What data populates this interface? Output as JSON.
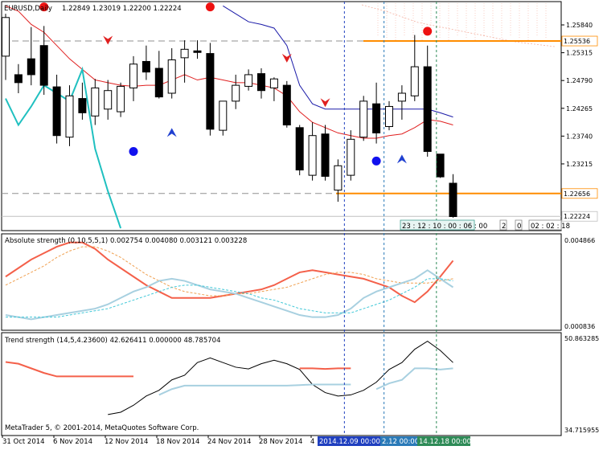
{
  "chart_data": [
    {
      "type": "candlestick",
      "symbol_label": "EURUSD,Daily",
      "ohlc_label": "1.22849 1.23019 1.22200 1.22224",
      "yaxis_ticks": [
        "1.25840",
        "1.25315",
        "1.24790",
        "1.24265",
        "1.23740",
        "1.23215"
      ],
      "ylim": [
        1.22,
        1.2625
      ],
      "price_tags": [
        {
          "value": 1.25536,
          "label": "1.25536",
          "color": "#ff8c00"
        },
        {
          "value": 1.22656,
          "label": "1.22656",
          "color": "#ff8c00"
        },
        {
          "value": 1.22224,
          "label": "1.22224",
          "color": "#c0c0c0"
        }
      ],
      "time_box_labels": [
        "23 : 12 : 10 : 00 : 06 : 00"
      ],
      "time_box2_labels": [
        "2",
        "0",
        "02 : 02 : 18"
      ],
      "candles": [
        {
          "o": 1.2525,
          "h": 1.2605,
          "l": 1.248,
          "c": 1.2598
        },
        {
          "o": 1.249,
          "h": 1.251,
          "l": 1.2455,
          "c": 1.2475
        },
        {
          "o": 1.252,
          "h": 1.258,
          "l": 1.247,
          "c": 1.249
        },
        {
          "o": 1.2545,
          "h": 1.2582,
          "l": 1.2452,
          "c": 1.247
        },
        {
          "o": 1.2467,
          "h": 1.249,
          "l": 1.236,
          "c": 1.2375
        },
        {
          "o": 1.2372,
          "h": 1.247,
          "l": 1.2355,
          "c": 1.245
        },
        {
          "o": 1.2445,
          "h": 1.2475,
          "l": 1.2405,
          "c": 1.2418
        },
        {
          "o": 1.2412,
          "h": 1.2482,
          "l": 1.2395,
          "c": 1.2465
        },
        {
          "o": 1.2425,
          "h": 1.248,
          "l": 1.2405,
          "c": 1.246
        },
        {
          "o": 1.242,
          "h": 1.2475,
          "l": 1.241,
          "c": 1.2468
        },
        {
          "o": 1.2465,
          "h": 1.2525,
          "l": 1.244,
          "c": 1.251
        },
        {
          "o": 1.2515,
          "h": 1.2545,
          "l": 1.248,
          "c": 1.2495
        },
        {
          "o": 1.2502,
          "h": 1.2535,
          "l": 1.2445,
          "c": 1.2448
        },
        {
          "o": 1.2455,
          "h": 1.254,
          "l": 1.2445,
          "c": 1.2518
        },
        {
          "o": 1.2522,
          "h": 1.2555,
          "l": 1.2475,
          "c": 1.2538
        },
        {
          "o": 1.2535,
          "h": 1.2555,
          "l": 1.252,
          "c": 1.2532
        },
        {
          "o": 1.253,
          "h": 1.255,
          "l": 1.2375,
          "c": 1.2387
        },
        {
          "o": 1.2385,
          "h": 1.244,
          "l": 1.2375,
          "c": 1.244
        },
        {
          "o": 1.244,
          "h": 1.249,
          "l": 1.2425,
          "c": 1.247
        },
        {
          "o": 1.2468,
          "h": 1.25,
          "l": 1.246,
          "c": 1.249
        },
        {
          "o": 1.2492,
          "h": 1.2502,
          "l": 1.2445,
          "c": 1.246
        },
        {
          "o": 1.2465,
          "h": 1.2485,
          "l": 1.244,
          "c": 1.2482
        },
        {
          "o": 1.247,
          "h": 1.2478,
          "l": 1.239,
          "c": 1.2395
        },
        {
          "o": 1.239,
          "h": 1.2395,
          "l": 1.23,
          "c": 1.231
        },
        {
          "o": 1.23,
          "h": 1.24,
          "l": 1.229,
          "c": 1.2375
        },
        {
          "o": 1.2378,
          "h": 1.2395,
          "l": 1.229,
          "c": 1.2298
        },
        {
          "o": 1.2272,
          "h": 1.233,
          "l": 1.225,
          "c": 1.2318
        },
        {
          "o": 1.23,
          "h": 1.2385,
          "l": 1.229,
          "c": 1.2368
        },
        {
          "o": 1.2372,
          "h": 1.245,
          "l": 1.2365,
          "c": 1.244
        },
        {
          "o": 1.2435,
          "h": 1.2475,
          "l": 1.236,
          "c": 1.238
        },
        {
          "o": 1.2392,
          "h": 1.244,
          "l": 1.2385,
          "c": 1.243
        },
        {
          "o": 1.244,
          "h": 1.247,
          "l": 1.2405,
          "c": 1.2455
        },
        {
          "o": 1.245,
          "h": 1.2565,
          "l": 1.244,
          "c": 1.2505
        },
        {
          "o": 1.2505,
          "h": 1.2545,
          "l": 1.2335,
          "c": 1.2345
        },
        {
          "o": 1.234,
          "h": 1.234,
          "l": 1.2295,
          "c": 1.2297
        },
        {
          "o": 1.2285,
          "h": 1.2302,
          "l": 1.222,
          "c": 1.2222
        }
      ],
      "red_trail": [
        1.262,
        1.261,
        1.2585,
        1.257,
        1.2545,
        1.252,
        1.25,
        1.248,
        1.2475,
        1.247,
        1.2468,
        1.247,
        1.247,
        1.248,
        1.249,
        1.248,
        1.2485,
        1.248,
        1.2475,
        1.2475,
        1.247,
        1.2465,
        1.245,
        1.242,
        1.24,
        1.239,
        1.238,
        1.2375,
        1.237,
        1.237,
        1.2375,
        1.2378,
        1.239,
        1.2405,
        1.2402,
        1.2395
      ],
      "blue_trail": [
        null,
        null,
        null,
        null,
        null,
        null,
        null,
        null,
        null,
        null,
        null,
        null,
        null,
        null,
        null,
        null,
        null,
        1.262,
        1.2605,
        1.259,
        1.2585,
        1.2578,
        1.2545,
        1.247,
        1.2435,
        1.2425,
        1.2425,
        1.2425,
        1.2425,
        1.2425,
        1.2425,
        1.2425,
        1.2425,
        1.2425,
        1.2418,
        1.241
      ],
      "cyan_trail": [
        1.2445,
        1.2395,
        1.243,
        1.247,
        1.2455,
        1.244,
        1.25,
        1.235,
        1.227,
        1.22
      ],
      "fractals_up": [
        {
          "i": 3,
          "y": 1.2618
        },
        {
          "i": 16,
          "y": 1.2618
        },
        {
          "i": 33,
          "y": 1.2572
        }
      ],
      "fractals_down": [
        {
          "i": 10,
          "y": 1.2345
        },
        {
          "i": 29,
          "y": 1.2327
        }
      ],
      "arrows_down": [
        {
          "i": 8,
          "y": 1.2556
        },
        {
          "i": 22,
          "y": 1.2522
        },
        {
          "i": 25,
          "y": 1.2438
        }
      ],
      "arrows_up": [
        {
          "i": 13,
          "y": 1.238
        },
        {
          "i": 31,
          "y": 1.233
        }
      ]
    },
    {
      "type": "line",
      "title": "Absolute strength (0,10,5,5,1) 0.002754 0.004080 0.003121 0.003228",
      "yaxis_ticks": [
        "0.004866",
        "0.000836"
      ],
      "ylim": [
        0.000836,
        0.004866
      ],
      "series": [
        {
          "color": "#f4604a",
          "values": [
            0.0032,
            0.0036,
            0.004,
            0.0043,
            0.0046,
            0.0048,
            0.0048,
            0.0045,
            0.004,
            0.0036,
            0.0032,
            0.0028,
            0.0025,
            0.0022,
            0.0022,
            0.0022,
            0.0022,
            0.0023,
            0.0024,
            0.0025,
            0.0026,
            0.0028,
            0.0031,
            0.0034,
            0.0035,
            0.0034,
            0.0033,
            0.0032,
            0.0031,
            0.0029,
            0.0027,
            0.0023,
            0.002,
            0.0025,
            0.0032,
            0.00395
          ]
        },
        {
          "color": "#f0a050",
          "dashed": true,
          "values": [
            0.0028,
            0.0031,
            0.0034,
            0.0037,
            0.0041,
            0.0044,
            0.0046,
            0.0046,
            0.0044,
            0.0041,
            0.0037,
            0.0033,
            0.003,
            0.0027,
            0.0025,
            0.0024,
            0.0023,
            0.0023,
            0.0024,
            0.0024,
            0.0025,
            0.0026,
            0.0027,
            0.0029,
            0.0031,
            0.0033,
            0.0034,
            0.0034,
            0.0033,
            0.0031,
            0.003,
            0.0029,
            0.0029,
            0.0029,
            0.003,
            0.0031
          ]
        },
        {
          "color": "#a8d0e0",
          "values": [
            0.0014,
            0.0013,
            0.0012,
            0.0013,
            0.0014,
            0.0015,
            0.0016,
            0.0017,
            0.0019,
            0.0022,
            0.0025,
            0.0027,
            0.003,
            0.0031,
            0.003,
            0.0028,
            0.0026,
            0.0025,
            0.0024,
            0.0022,
            0.002,
            0.0018,
            0.0016,
            0.0014,
            0.0013,
            0.0013,
            0.0014,
            0.0017,
            0.0022,
            0.0025,
            0.0027,
            0.0029,
            0.0031,
            0.0035,
            0.0031,
            0.0027
          ]
        },
        {
          "color": "#40c8d8",
          "dashed": true,
          "values": [
            0.0013,
            0.0013,
            0.0013,
            0.0013,
            0.0013,
            0.0014,
            0.0015,
            0.0016,
            0.0017,
            0.0019,
            0.0021,
            0.0023,
            0.0025,
            0.0027,
            0.0028,
            0.0028,
            0.0027,
            0.0026,
            0.0025,
            0.0024,
            0.0022,
            0.0021,
            0.0019,
            0.0017,
            0.0016,
            0.0015,
            0.0015,
            0.0015,
            0.0017,
            0.0019,
            0.0021,
            0.0024,
            0.0027,
            0.0031,
            0.0031,
            0.003
          ]
        }
      ]
    },
    {
      "type": "line",
      "title": "Trend strength (14,5,4.23600) 42.626411 0.000000 48.785704",
      "yaxis_ticks": [
        "50.863285",
        "34.715955"
      ],
      "ylim": [
        34.715955,
        50.863285
      ],
      "series": [
        {
          "color": "#000000",
          "values": [
            null,
            null,
            null,
            null,
            null,
            null,
            null,
            null,
            37.8,
            38.2,
            39.4,
            41.0,
            42.0,
            43.8,
            44.6,
            46.8,
            47.6,
            46.8,
            46.0,
            45.7,
            46.6,
            47.2,
            46.6,
            45.6,
            43.0,
            41.6,
            41.0,
            41.2,
            42.0,
            43.4,
            45.6,
            46.8,
            49.1,
            50.5,
            48.9,
            46.8
          ]
        },
        {
          "color": "#f4604a",
          "values": [
            46.9,
            46.6,
            45.8,
            45.0,
            44.4,
            44.4,
            44.4,
            44.4,
            44.4,
            44.4,
            44.4,
            null,
            null,
            null,
            null,
            null,
            null,
            null,
            null,
            null,
            null,
            null,
            null,
            45.8,
            45.8,
            45.7,
            45.8,
            45.8
          ]
        },
        {
          "color": "#a8d0e0",
          "values": [
            null,
            null,
            null,
            null,
            null,
            null,
            null,
            null,
            null,
            null,
            null,
            null,
            41.2,
            42.2,
            42.8,
            42.8,
            42.8,
            42.8,
            42.8,
            42.8,
            42.8,
            42.8,
            42.8,
            42.9,
            43.0,
            43.0,
            43.0,
            43.0,
            null,
            42.2,
            43.2,
            43.8,
            45.8,
            45.8,
            45.6,
            45.8
          ]
        }
      ]
    }
  ],
  "xaxis": {
    "labels": [
      "31 Oct 2014",
      "6 Nov 2014",
      "12 Nov 2014",
      "18 Nov 2014",
      "24 Nov 2014",
      "28 Nov 2014",
      "4"
    ],
    "highlight_labels": [
      {
        "text": "2014.12.09 00:00",
        "bg": "#1f3fbf",
        "fg": "#ffffff"
      },
      {
        "text": "2.12 00:00",
        "bg": "#2a7ab8",
        "fg": "#ffffff"
      },
      {
        "text": "14.12.18 00:00",
        "bg": "#2e8b57",
        "fg": "#ffffff"
      }
    ]
  },
  "vlines": [
    {
      "i": 26.5,
      "color": "#1f3fbf"
    },
    {
      "i": 29.6,
      "color": "#2a7ab8"
    },
    {
      "i": 33.7,
      "color": "#2e8b57"
    }
  ],
  "footer": "MetaTrader 5, © 2001-2014, MetaQuotes Software Corp."
}
